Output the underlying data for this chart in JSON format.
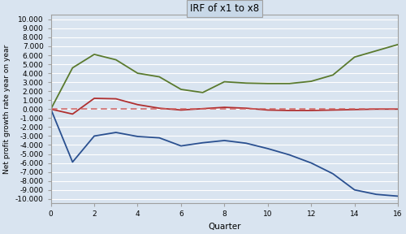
{
  "title": "IRF of x1 to x8",
  "xlabel": "Quarter",
  "ylabel": "Net profit growth rate year on year",
  "xlim": [
    0,
    16
  ],
  "ylim": [
    -10.5,
    10.5
  ],
  "xticks": [
    0,
    2,
    4,
    6,
    8,
    10,
    12,
    14,
    16
  ],
  "ytick_vals": [
    -10,
    -9,
    -8,
    -7,
    -6,
    -5,
    -4,
    -3,
    -2,
    -1,
    0,
    1,
    2,
    3,
    4,
    5,
    6,
    7,
    8,
    9,
    10
  ],
  "quarters": [
    0,
    1,
    2,
    3,
    4,
    5,
    6,
    7,
    8,
    9,
    10,
    11,
    12,
    13,
    14,
    15,
    16
  ],
  "upper_ci": [
    0.0,
    4.6,
    6.1,
    5.5,
    4.0,
    3.6,
    2.2,
    1.85,
    3.05,
    2.9,
    2.85,
    2.85,
    3.1,
    3.8,
    5.8,
    6.5,
    7.2
  ],
  "irf": [
    0.0,
    -0.55,
    1.2,
    1.15,
    0.5,
    0.1,
    -0.1,
    0.05,
    0.2,
    0.1,
    -0.1,
    -0.15,
    -0.15,
    -0.1,
    -0.05,
    0.0,
    0.0
  ],
  "lower_ci": [
    0.0,
    -5.9,
    -3.0,
    -2.6,
    -3.05,
    -3.2,
    -4.1,
    -3.75,
    -3.5,
    -3.8,
    -4.4,
    -5.1,
    -6.0,
    -7.2,
    -9.0,
    -9.5,
    -9.7
  ],
  "zero_line": 0.0,
  "upper_color": "#5a7a2e",
  "irf_color": "#b03030",
  "lower_color": "#2a5090",
  "dashed_color": "#d06060",
  "bg_color": "#d9e4f0",
  "plot_bg_color": "#d9e4f0",
  "title_bg_color": "#c8d8e8",
  "grid_color": "#ffffff",
  "border_color": "#a0a0a0"
}
